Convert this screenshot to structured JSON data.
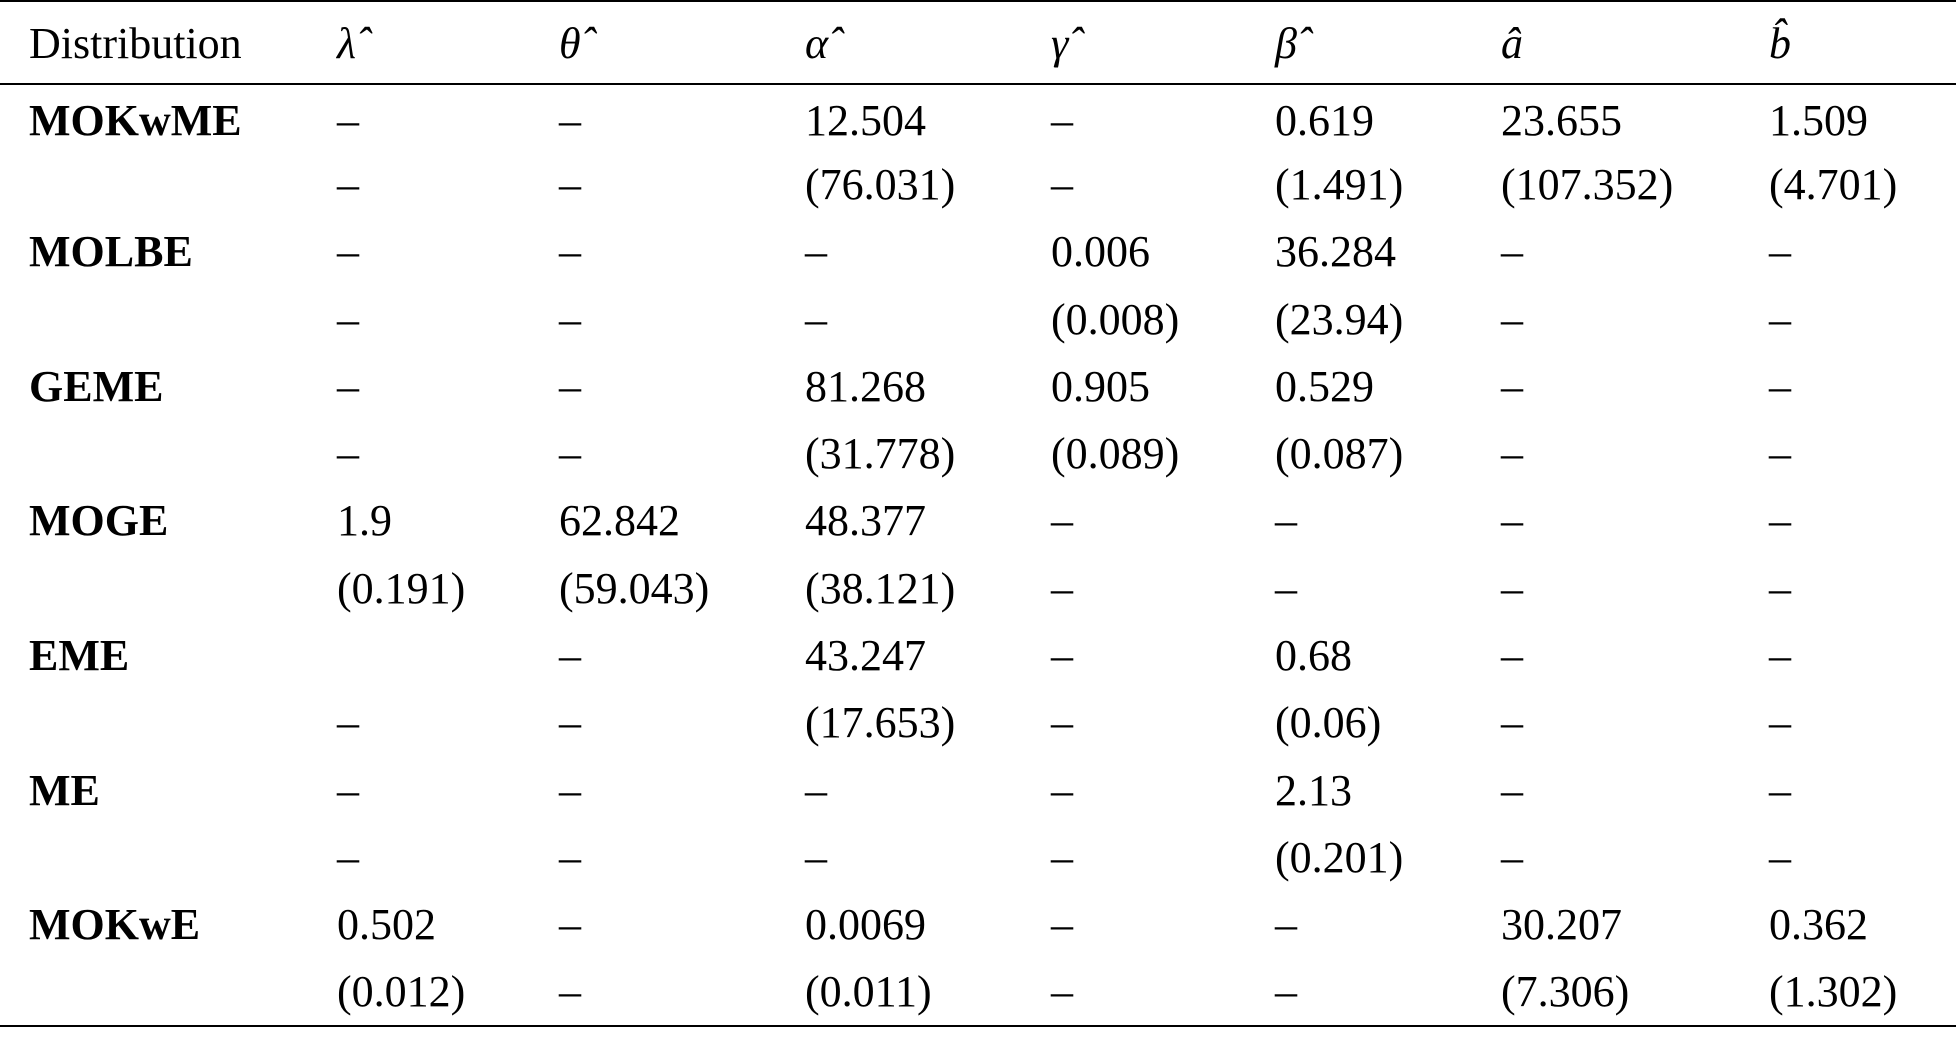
{
  "table": {
    "headers": [
      "Distribution",
      "λ̂",
      "θ̂",
      "α̂",
      "γ̂",
      "β̂",
      "â",
      "b̂"
    ],
    "rows": [
      [
        "MOKwME",
        "–",
        "–",
        "12.504",
        "–",
        "0.619",
        "23.655",
        "1.509"
      ],
      [
        "",
        "–",
        "–",
        "(76.031)",
        "–",
        "(1.491)",
        "(107.352)",
        "(4.701)"
      ],
      [
        "MOLBE",
        "–",
        "–",
        "–",
        "0.006",
        "36.284",
        "–",
        "–"
      ],
      [
        "",
        "–",
        "–",
        "–",
        "(0.008)",
        "(23.94)",
        "–",
        "–"
      ],
      [
        "GEME",
        "–",
        "–",
        "81.268",
        "0.905",
        "0.529",
        "–",
        "–"
      ],
      [
        "",
        "–",
        "–",
        "(31.778)",
        "(0.089)",
        "(0.087)",
        "–",
        "–"
      ],
      [
        "MOGE",
        "1.9",
        "62.842",
        "48.377",
        "–",
        "–",
        "–",
        "–"
      ],
      [
        "",
        "(0.191)",
        "(59.043)",
        "(38.121)",
        "–",
        "–",
        "–",
        "–"
      ],
      [
        "EME",
        "",
        "–",
        "43.247",
        "–",
        "0.68",
        "–",
        "–"
      ],
      [
        "",
        "–",
        "–",
        "(17.653)",
        "–",
        "(0.06)",
        "–",
        "–"
      ],
      [
        "ME",
        "–",
        "–",
        "–",
        "–",
        "2.13",
        "–",
        "–"
      ],
      [
        "",
        "–",
        "–",
        "–",
        "–",
        "(0.201)",
        "–",
        "–"
      ],
      [
        "MOKwE",
        "0.502",
        "–",
        "0.0069",
        "–",
        "–",
        "30.207",
        "0.362"
      ],
      [
        "",
        "(0.012)",
        "–",
        "(0.011)",
        "–",
        "–",
        "(7.306)",
        "(1.302)"
      ]
    ]
  }
}
